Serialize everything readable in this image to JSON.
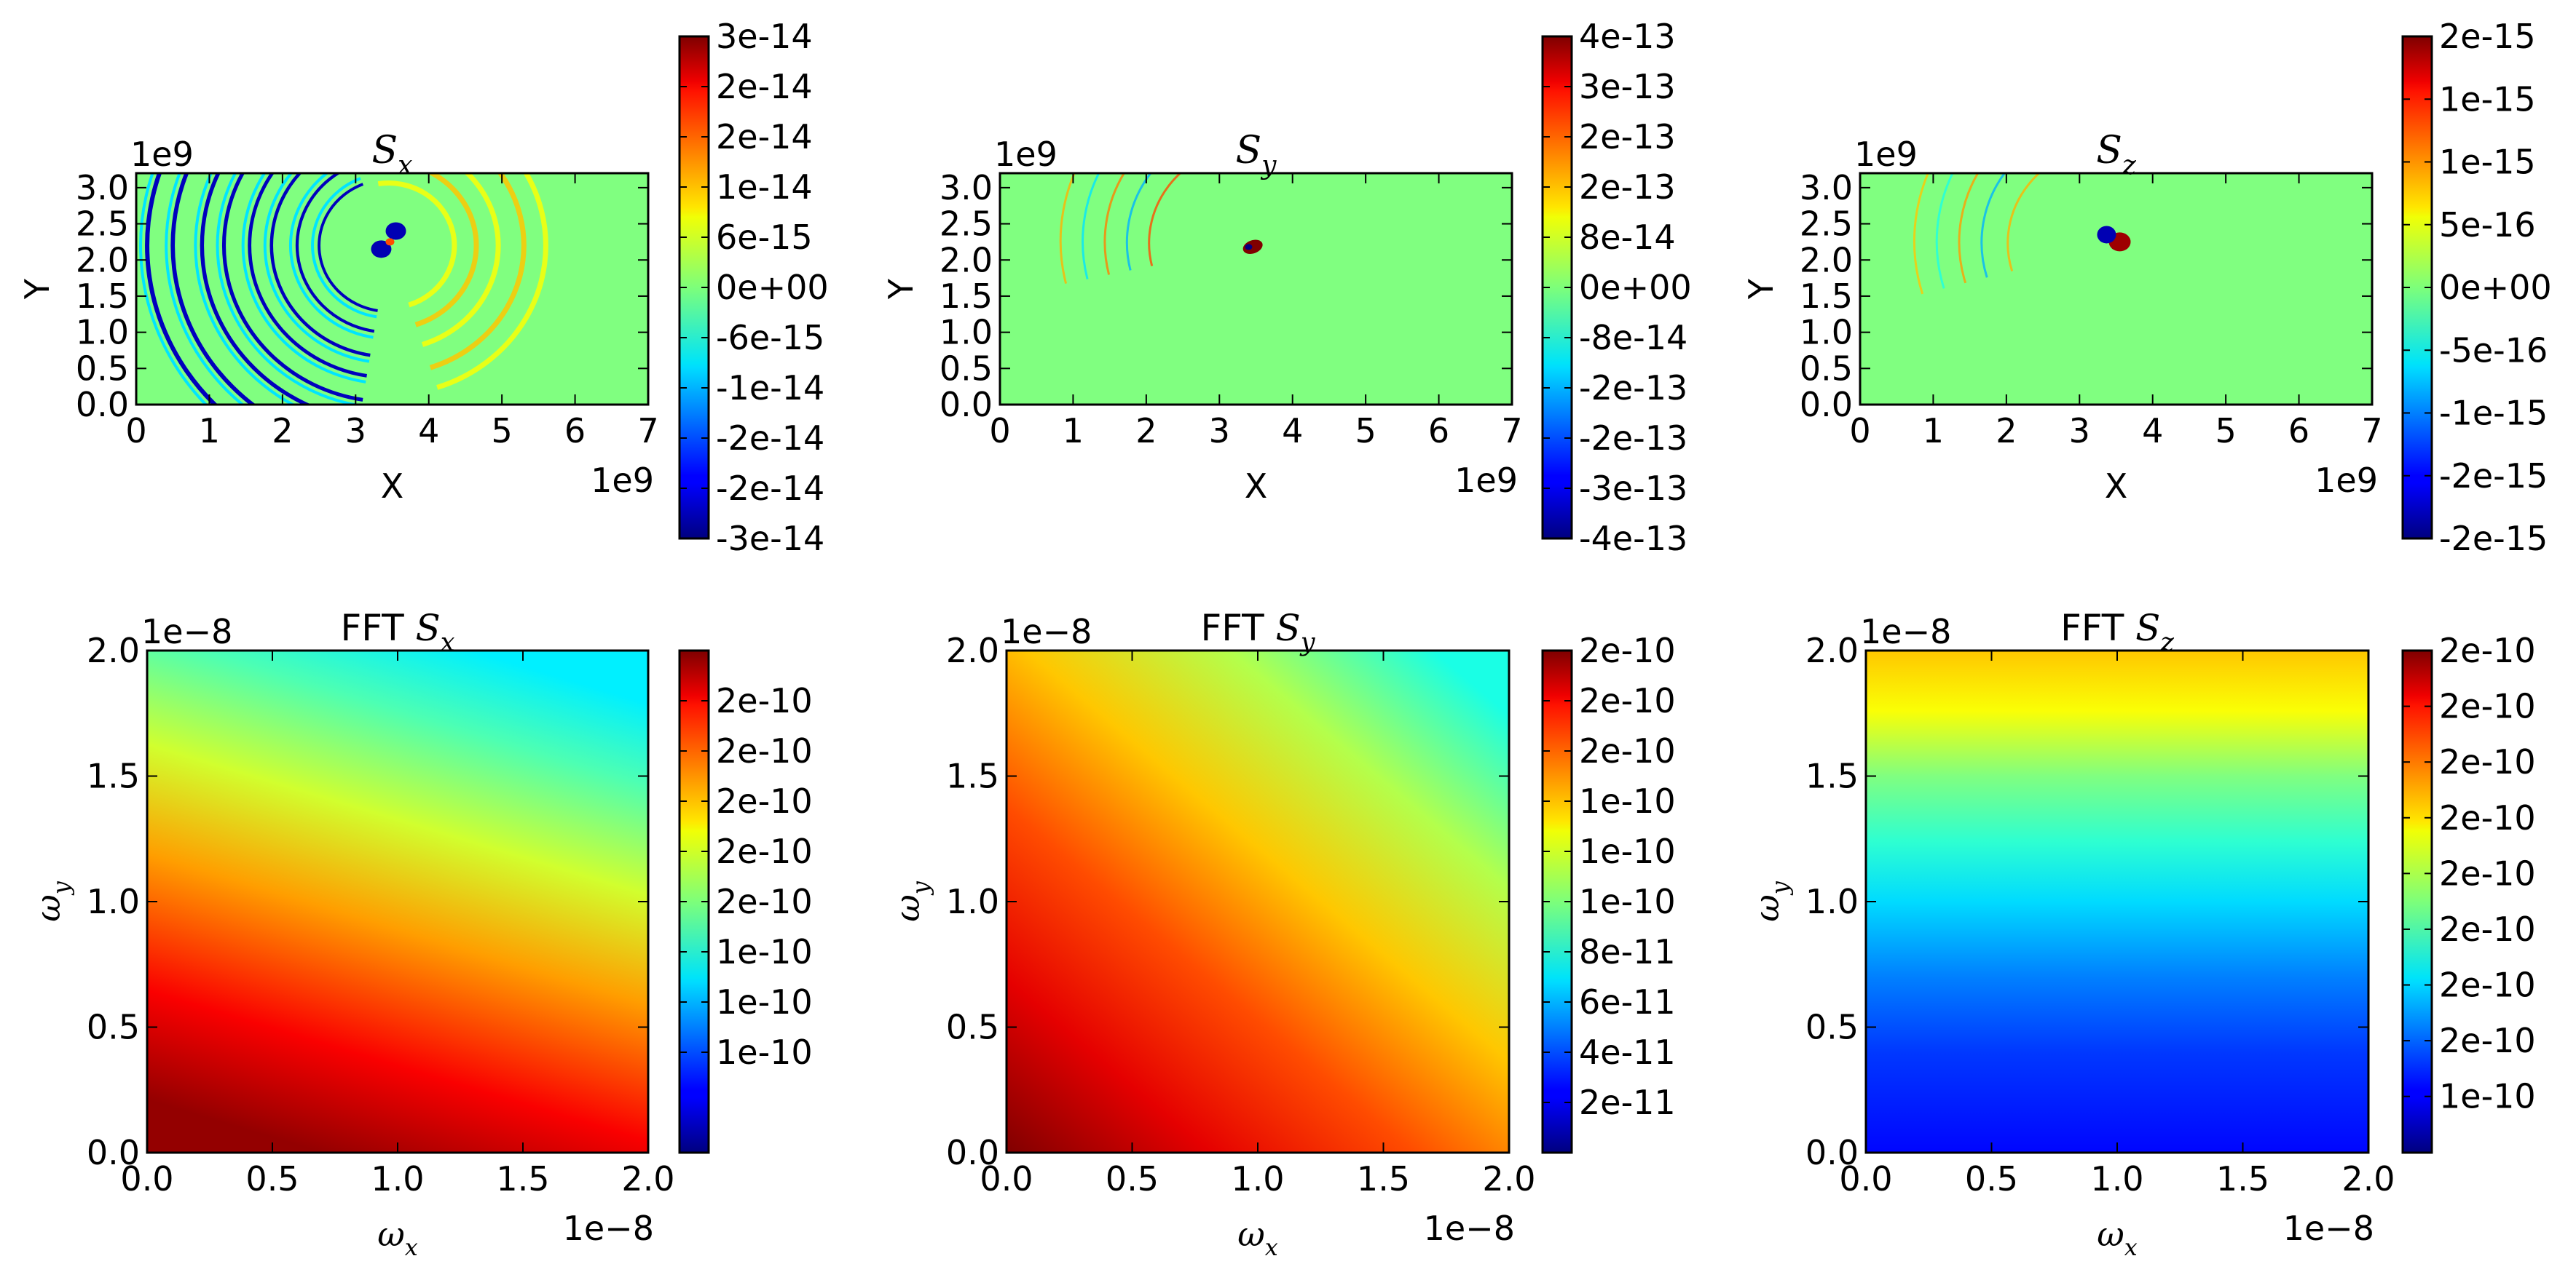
{
  "chart_data": [
    {
      "id": "sx",
      "type": "heatmap",
      "title": "S_x",
      "title_parts": {
        "prefix": "",
        "sym": "S",
        "sub": "x"
      },
      "xlabel": "X",
      "ylabel": "Y",
      "x_ticks": [
        "0",
        "1",
        "2",
        "3",
        "4",
        "5",
        "6",
        "7"
      ],
      "y_ticks": [
        "0.0",
        "0.5",
        "1.0",
        "1.5",
        "2.0",
        "2.5",
        "3.0"
      ],
      "xlim": [
        0,
        7
      ],
      "ylim": [
        0,
        3.2
      ],
      "x_offset_label": "1e9",
      "y_offset_label": "1e9",
      "colorbar_ticks": [
        "3e-14",
        "2e-14",
        "2e-14",
        "1e-14",
        "6e-15",
        "0e+00",
        "-6e-15",
        "-1e-14",
        "-2e-14",
        "-2e-14",
        "-3e-14"
      ],
      "colormap": "jet",
      "pattern": "rings-sx"
    },
    {
      "id": "sy",
      "type": "heatmap",
      "title": "S_y",
      "title_parts": {
        "prefix": "",
        "sym": "S",
        "sub": "y"
      },
      "xlabel": "X",
      "ylabel": "Y",
      "x_ticks": [
        "0",
        "1",
        "2",
        "3",
        "4",
        "5",
        "6",
        "7"
      ],
      "y_ticks": [
        "0.0",
        "0.5",
        "1.0",
        "1.5",
        "2.0",
        "2.5",
        "3.0"
      ],
      "xlim": [
        0,
        7
      ],
      "ylim": [
        0,
        3.2
      ],
      "x_offset_label": "1e9",
      "y_offset_label": "1e9",
      "colorbar_ticks": [
        "4e-13",
        "3e-13",
        "2e-13",
        "2e-13",
        "8e-14",
        "0e+00",
        "-8e-14",
        "-2e-13",
        "-2e-13",
        "-3e-13",
        "-4e-13"
      ],
      "colormap": "jet",
      "pattern": "rings-sy"
    },
    {
      "id": "sz",
      "type": "heatmap",
      "title": "S_z",
      "title_parts": {
        "prefix": "",
        "sym": "S",
        "sub": "z"
      },
      "xlabel": "X",
      "ylabel": "Y",
      "x_ticks": [
        "0",
        "1",
        "2",
        "3",
        "4",
        "5",
        "6",
        "7"
      ],
      "y_ticks": [
        "0.0",
        "0.5",
        "1.0",
        "1.5",
        "2.0",
        "2.5",
        "3.0"
      ],
      "xlim": [
        0,
        7
      ],
      "ylim": [
        0,
        3.2
      ],
      "x_offset_label": "1e9",
      "y_offset_label": "1e9",
      "colorbar_ticks": [
        "2e-15",
        "1e-15",
        "1e-15",
        "5e-16",
        "0e+00",
        "-5e-16",
        "-1e-15",
        "-2e-15",
        "-2e-15"
      ],
      "colormap": "jet",
      "pattern": "rings-sz"
    },
    {
      "id": "fsx",
      "type": "heatmap",
      "title": "FFT S_x",
      "title_parts": {
        "prefix": "FFT ",
        "sym": "S",
        "sub": "x"
      },
      "xlabel": "ω_x",
      "ylabel": "ω_y",
      "x_ticks": [
        "0.0",
        "0.5",
        "1.0",
        "1.5",
        "2.0"
      ],
      "y_ticks": [
        "0.0",
        "0.5",
        "1.0",
        "1.5",
        "2.0"
      ],
      "xlim": [
        0,
        2
      ],
      "ylim": [
        0,
        2
      ],
      "x_offset_label": "1e−8",
      "y_offset_label": "1e−8",
      "colorbar_ticks": [
        "2e-10",
        "2e-10",
        "2e-10",
        "2e-10",
        "2e-10",
        "1e-10",
        "1e-10",
        "1e-10"
      ],
      "colormap": "jet",
      "pattern": "grad-fsx"
    },
    {
      "id": "fsy",
      "type": "heatmap",
      "title": "FFT S_y",
      "title_parts": {
        "prefix": "FFT ",
        "sym": "S",
        "sub": "y"
      },
      "xlabel": "ω_x",
      "ylabel": "ω_y",
      "x_ticks": [
        "0.0",
        "0.5",
        "1.0",
        "1.5",
        "2.0"
      ],
      "y_ticks": [
        "0.0",
        "0.5",
        "1.0",
        "1.5",
        "2.0"
      ],
      "xlim": [
        0,
        2
      ],
      "ylim": [
        0,
        2
      ],
      "x_offset_label": "1e−8",
      "y_offset_label": "1e−8",
      "colorbar_ticks": [
        "2e-10",
        "2e-10",
        "2e-10",
        "1e-10",
        "1e-10",
        "1e-10",
        "8e-11",
        "6e-11",
        "4e-11",
        "2e-11"
      ],
      "colormap": "jet",
      "pattern": "grad-fsy"
    },
    {
      "id": "fsz",
      "type": "heatmap",
      "title": "FFT S_z",
      "title_parts": {
        "prefix": "FFT ",
        "sym": "S",
        "sub": "z"
      },
      "xlabel": "ω_x",
      "ylabel": "ω_y",
      "x_ticks": [
        "0.0",
        "0.5",
        "1.0",
        "1.5",
        "2.0"
      ],
      "y_ticks": [
        "0.0",
        "0.5",
        "1.0",
        "1.5",
        "2.0"
      ],
      "xlim": [
        0,
        2
      ],
      "ylim": [
        0,
        2
      ],
      "x_offset_label": "1e−8",
      "y_offset_label": "1e−8",
      "colorbar_ticks": [
        "2e-10",
        "2e-10",
        "2e-10",
        "2e-10",
        "2e-10",
        "2e-10",
        "2e-10",
        "2e-10",
        "1e-10"
      ],
      "colormap": "jet",
      "pattern": "grad-fsz"
    }
  ]
}
